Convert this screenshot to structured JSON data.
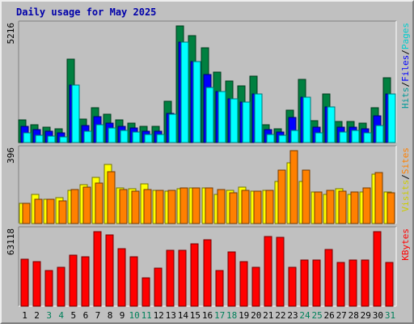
{
  "chart_data": {
    "type": "bar",
    "title": "Daily usage for May 2025",
    "categories": [
      "1",
      "2",
      "3",
      "4",
      "5",
      "6",
      "7",
      "8",
      "9",
      "10",
      "11",
      "12",
      "13",
      "14",
      "15",
      "16",
      "17",
      "18",
      "19",
      "20",
      "21",
      "22",
      "23",
      "24",
      "25",
      "26",
      "27",
      "28",
      "29",
      "30",
      "31"
    ],
    "weekend_days": [
      3,
      4,
      10,
      11,
      17,
      18,
      24,
      25,
      31
    ],
    "panels": [
      {
        "id": "top",
        "ymax_label": "5216",
        "right_labels": [
          {
            "text": "Hits",
            "color": "#009999"
          },
          {
            "text": "/",
            "color": "#000000"
          },
          {
            "text": "Files",
            "color": "#0000ff"
          },
          {
            "text": "/",
            "color": "#000000"
          },
          {
            "text": "Pages",
            "color": "#00cccc"
          }
        ],
        "ylim": [
          0,
          5216
        ],
        "series": [
          {
            "name": "Hits",
            "color": "#008040",
            "values": [
              1000,
              780,
              690,
              630,
              3740,
              1040,
              1540,
              1250,
              1000,
              860,
              720,
              720,
              1840,
              5216,
              4780,
              4250,
              3150,
              2750,
              2530,
              2960,
              800,
              620,
              1450,
              2830,
              980,
              2160,
              950,
              950,
              860,
              1540,
              2880
            ]
          },
          {
            "name": "Files",
            "color": "#0000ff",
            "values": [
              720,
              570,
              490,
              450,
              2580,
              760,
              1150,
              880,
              740,
              640,
              520,
              520,
              1290,
              4480,
              3640,
              3040,
              2280,
              1970,
              1820,
              2170,
              590,
              460,
              1130,
              2040,
              700,
              1580,
              690,
              680,
              620,
              1180,
              2160
            ]
          },
          {
            "name": "Pages",
            "color": "#00ffff",
            "values": [
              430,
              330,
              290,
              260,
              2580,
              500,
              780,
              650,
              560,
              470,
              380,
              380,
              1270,
              4480,
              3640,
              2480,
              2280,
              1970,
              1820,
              2170,
              380,
              330,
              530,
              2040,
              440,
              1580,
              470,
              560,
              440,
              770,
              2160
            ]
          }
        ]
      },
      {
        "id": "middle",
        "ymax_label": "396",
        "right_labels": [
          {
            "text": "Visits",
            "color": "#cccc00"
          },
          {
            "text": "/",
            "color": "#000000"
          },
          {
            "text": "Sites",
            "color": "#ff8000"
          }
        ],
        "ylim": [
          0,
          396
        ],
        "series": [
          {
            "name": "Visits",
            "color": "#ffff00",
            "values": [
              110,
              160,
              130,
              140,
              180,
              210,
              250,
              320,
              195,
              190,
              215,
              180,
              175,
              190,
              195,
              195,
              160,
              180,
              200,
              175,
              180,
              230,
              330,
              230,
              170,
              160,
              190,
              160,
              170,
              270,
              170
            ]
          },
          {
            "name": "Sites",
            "color": "#ff8000",
            "values": [
              110,
              130,
              130,
              125,
              185,
              200,
              220,
              280,
              185,
              175,
              185,
              180,
              180,
              195,
              195,
              195,
              185,
              165,
              180,
              175,
              180,
              290,
              396,
              290,
              170,
              180,
              175,
              170,
              195,
              275,
              165
            ]
          }
        ]
      },
      {
        "id": "bottom",
        "ymax_label": "63118",
        "right_labels": [
          {
            "text": "KBytes",
            "color": "#ff0000"
          }
        ],
        "ylim": [
          0,
          63118
        ],
        "series": [
          {
            "name": "KBytes",
            "color": "#ff0000",
            "values": [
              40000,
              38000,
              30000,
              33000,
              43000,
              42000,
              63118,
              60500,
              48500,
              42000,
              24000,
              32000,
              47000,
              47500,
              53000,
              56000,
              30000,
              46000,
              38000,
              33000,
              59000,
              58000,
              33000,
              39000,
              39000,
              48000,
              37000,
              39000,
              39000,
              63000,
              37000
            ]
          }
        ]
      }
    ]
  }
}
